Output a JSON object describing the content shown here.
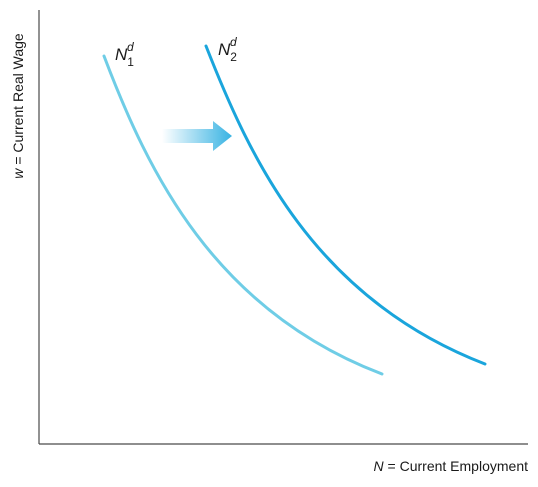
{
  "diagram": {
    "x_axis_label": {
      "var": "N",
      "text": " = Current Employment"
    },
    "y_axis_label": {
      "var": "w",
      "text": " = Current Real Wage"
    },
    "curves": [
      {
        "base": "N",
        "sub": "1",
        "sup": "d",
        "color": "#6fcde6"
      },
      {
        "base": "N",
        "sub": "2",
        "sup": "d",
        "color": "#1aa5dc"
      }
    ],
    "shift_arrow": {
      "direction": "right",
      "color": "#38b3e3"
    },
    "axis_color": "#4a4a4a"
  }
}
